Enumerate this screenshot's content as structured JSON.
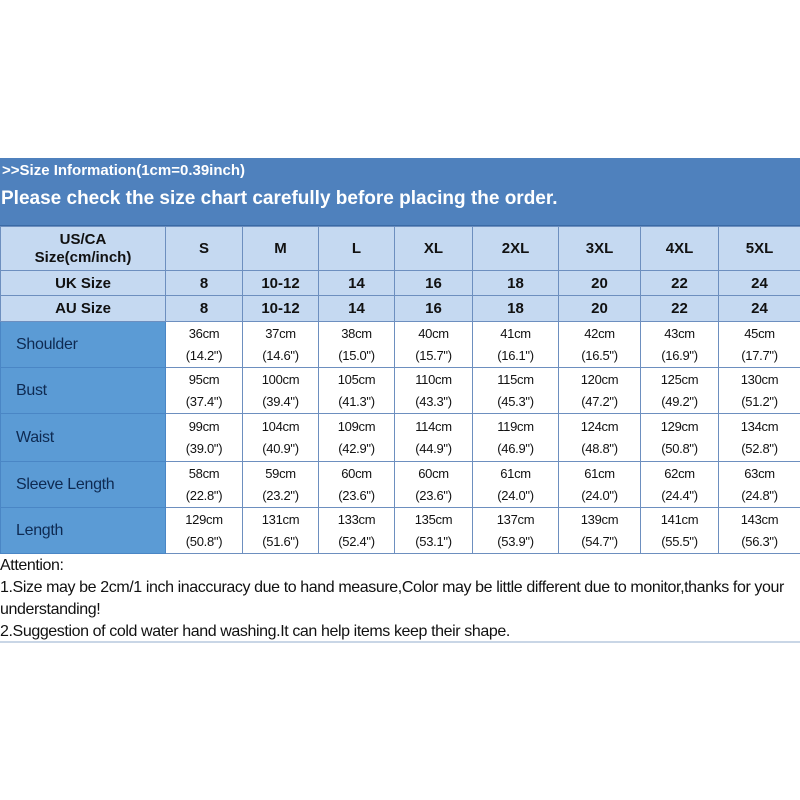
{
  "title": ">>Size Information(1cm=0.39inch)",
  "subtitle": "Please check the size chart carefully before placing the order.",
  "colors": {
    "header_bar": "#4f81bd",
    "header_cells": "#c5d9f1",
    "label_column": "#5b9bd5"
  },
  "table": {
    "header_label": [
      "US/CA",
      "Size(cm/inch)"
    ],
    "sizes": [
      "S",
      "M",
      "L",
      "XL",
      "2XL",
      "3XL",
      "4XL",
      "5XL"
    ],
    "uk": {
      "label": "UK Size",
      "values": [
        "8",
        "10-12",
        "14",
        "16",
        "18",
        "20",
        "22",
        "24"
      ]
    },
    "au": {
      "label": "AU Size",
      "values": [
        "8",
        "10-12",
        "14",
        "16",
        "18",
        "20",
        "22",
        "24"
      ]
    },
    "measurements": [
      {
        "label": "Shoulder",
        "cm": [
          "36cm",
          "37cm",
          "38cm",
          "40cm",
          "41cm",
          "42cm",
          "43cm",
          "45cm"
        ],
        "inch": [
          "(14.2\")",
          "(14.6\")",
          "(15.0\")",
          "(15.7\")",
          "(16.1\")",
          "(16.5\")",
          "(16.9\")",
          "(17.7\")"
        ]
      },
      {
        "label": "Bust",
        "cm": [
          "95cm",
          "100cm",
          "105cm",
          "110cm",
          "115cm",
          "120cm",
          "125cm",
          "130cm"
        ],
        "inch": [
          "(37.4\")",
          "(39.4\")",
          "(41.3\")",
          "(43.3\")",
          "(45.3\")",
          "(47.2\")",
          "(49.2\")",
          "(51.2\")"
        ]
      },
      {
        "label": "Waist",
        "cm": [
          "99cm",
          "104cm",
          "109cm",
          "114cm",
          "119cm",
          "124cm",
          "129cm",
          "134cm"
        ],
        "inch": [
          "(39.0\")",
          "(40.9\")",
          "(42.9\")",
          "(44.9\")",
          "(46.9\")",
          "(48.8\")",
          "(50.8\")",
          "(52.8\")"
        ]
      },
      {
        "label": "Sleeve Length",
        "cm": [
          "58cm",
          "59cm",
          "60cm",
          "60cm",
          "61cm",
          "61cm",
          "62cm",
          "63cm"
        ],
        "inch": [
          "(22.8\")",
          "(23.2\")",
          "(23.6\")",
          "(23.6\")",
          "(24.0\")",
          "(24.0\")",
          "(24.4\")",
          "(24.8\")"
        ]
      },
      {
        "label": "Length",
        "cm": [
          "129cm",
          "131cm",
          "133cm",
          "135cm",
          "137cm",
          "139cm",
          "141cm",
          "143cm"
        ],
        "inch": [
          "(50.8\")",
          "(51.6\")",
          "(52.4\")",
          "(53.1\")",
          "(53.9\")",
          "(54.7\")",
          "(55.5\")",
          "(56.3\")"
        ]
      }
    ]
  },
  "notes": {
    "heading": "Attention:",
    "items": [
      "1.Size may be 2cm/1  inch inaccuracy due to hand measure,Color may be little different due to monitor,thanks for your understanding!",
      "2.Suggestion of cold water hand washing.It can help items keep their shape."
    ]
  }
}
